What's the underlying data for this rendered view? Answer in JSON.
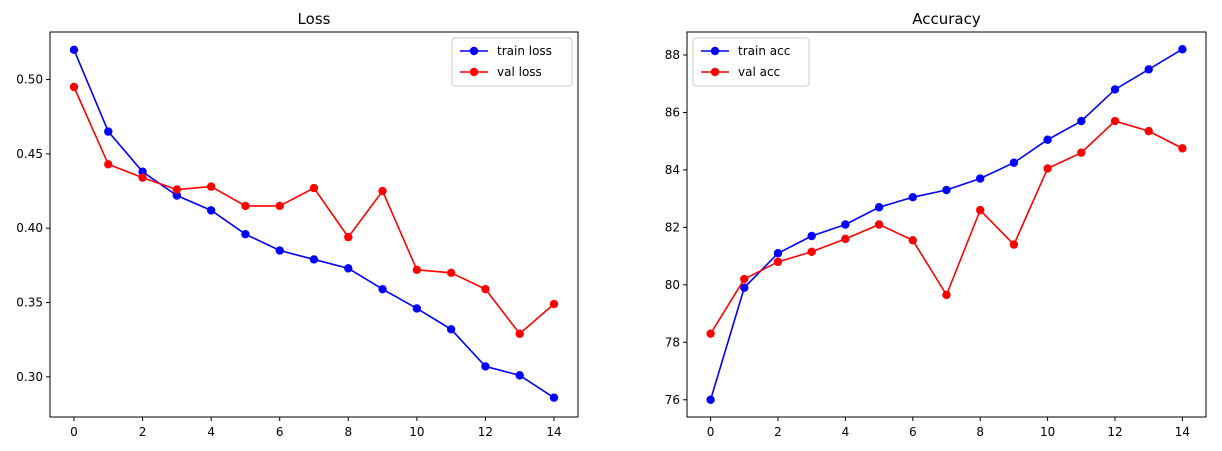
{
  "chart_data": [
    {
      "type": "line",
      "title": "Loss",
      "xlabel": "",
      "ylabel": "",
      "x": [
        0,
        1,
        2,
        3,
        4,
        5,
        6,
        7,
        8,
        9,
        10,
        11,
        12,
        13,
        14
      ],
      "xlim": [
        -0.7,
        14.7
      ],
      "ylim": [
        0.273,
        0.532
      ],
      "xticks": [
        0,
        2,
        4,
        6,
        8,
        10,
        12,
        14
      ],
      "yticks": [
        0.3,
        0.35,
        0.4,
        0.45,
        0.5
      ],
      "ytick_labels": [
        "0.30",
        "0.35",
        "0.40",
        "0.45",
        "0.50"
      ],
      "grid": false,
      "legend_position": "top-right",
      "series": [
        {
          "name": "train loss",
          "color": "#0000ff",
          "values": [
            0.52,
            0.465,
            0.438,
            0.422,
            0.412,
            0.396,
            0.385,
            0.379,
            0.373,
            0.359,
            0.346,
            0.332,
            0.307,
            0.301,
            0.286
          ]
        },
        {
          "name": "val loss",
          "color": "#ff0000",
          "values": [
            0.495,
            0.443,
            0.434,
            0.426,
            0.428,
            0.415,
            0.415,
            0.427,
            0.394,
            0.425,
            0.372,
            0.37,
            0.359,
            0.329,
            0.349
          ]
        }
      ]
    },
    {
      "type": "line",
      "title": "Accuracy",
      "xlabel": "",
      "ylabel": "",
      "x": [
        0,
        1,
        2,
        3,
        4,
        5,
        6,
        7,
        8,
        9,
        10,
        11,
        12,
        13,
        14
      ],
      "xlim": [
        -0.7,
        14.7
      ],
      "ylim": [
        75.4,
        88.8
      ],
      "xticks": [
        0,
        2,
        4,
        6,
        8,
        10,
        12,
        14
      ],
      "yticks": [
        76,
        78,
        80,
        82,
        84,
        86,
        88
      ],
      "ytick_labels": [
        "76",
        "78",
        "80",
        "82",
        "84",
        "86",
        "88"
      ],
      "grid": false,
      "legend_position": "top-left",
      "series": [
        {
          "name": "train acc",
          "color": "#0000ff",
          "values": [
            76.0,
            79.9,
            81.1,
            81.7,
            82.1,
            82.7,
            83.05,
            83.3,
            83.7,
            84.25,
            85.05,
            85.7,
            86.8,
            87.5,
            88.2
          ]
        },
        {
          "name": "val acc",
          "color": "#ff0000",
          "values": [
            78.3,
            80.2,
            80.8,
            81.15,
            81.6,
            82.1,
            81.55,
            79.65,
            82.6,
            81.4,
            84.05,
            84.6,
            85.7,
            85.35,
            84.75
          ]
        }
      ]
    }
  ]
}
